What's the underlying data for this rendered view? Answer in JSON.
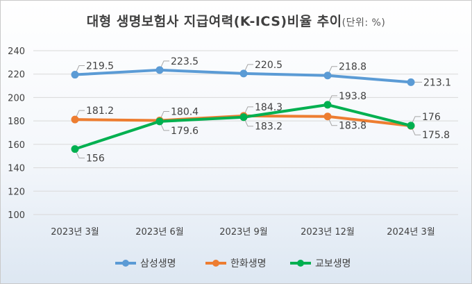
{
  "chart_data": {
    "type": "line",
    "title": "대형 생명보험사 지급여력(K-ICS)비율 추이",
    "unit_note": "(단위: %)",
    "categories": [
      "2023년 3월",
      "2023년 6월",
      "2023년 9월",
      "2023년 12월",
      "2024년 3월"
    ],
    "ylim": [
      100,
      240
    ],
    "yticks": [
      100,
      120,
      140,
      160,
      180,
      200,
      220,
      240
    ],
    "grid": true,
    "legend_position": "bottom",
    "series": [
      {
        "name": "삼성생명",
        "color": "#5b9bd5",
        "values": [
          219.5,
          223.5,
          220.5,
          218.8,
          213.1
        ],
        "labels": [
          "219.5",
          "223.5",
          "220.5",
          "218.8",
          "213.1"
        ]
      },
      {
        "name": "한화생명",
        "color": "#ed7d31",
        "values": [
          181.2,
          180.4,
          184.3,
          183.8,
          175.8
        ],
        "labels": [
          "181.2",
          "180.4",
          "184.3",
          "183.8",
          "175.8"
        ]
      },
      {
        "name": "교보생명",
        "color": "#00b050",
        "values": [
          156,
          179.6,
          183.2,
          193.8,
          176
        ],
        "labels": [
          "156",
          "179.6",
          "183.2",
          "193.8",
          "176"
        ]
      }
    ]
  }
}
